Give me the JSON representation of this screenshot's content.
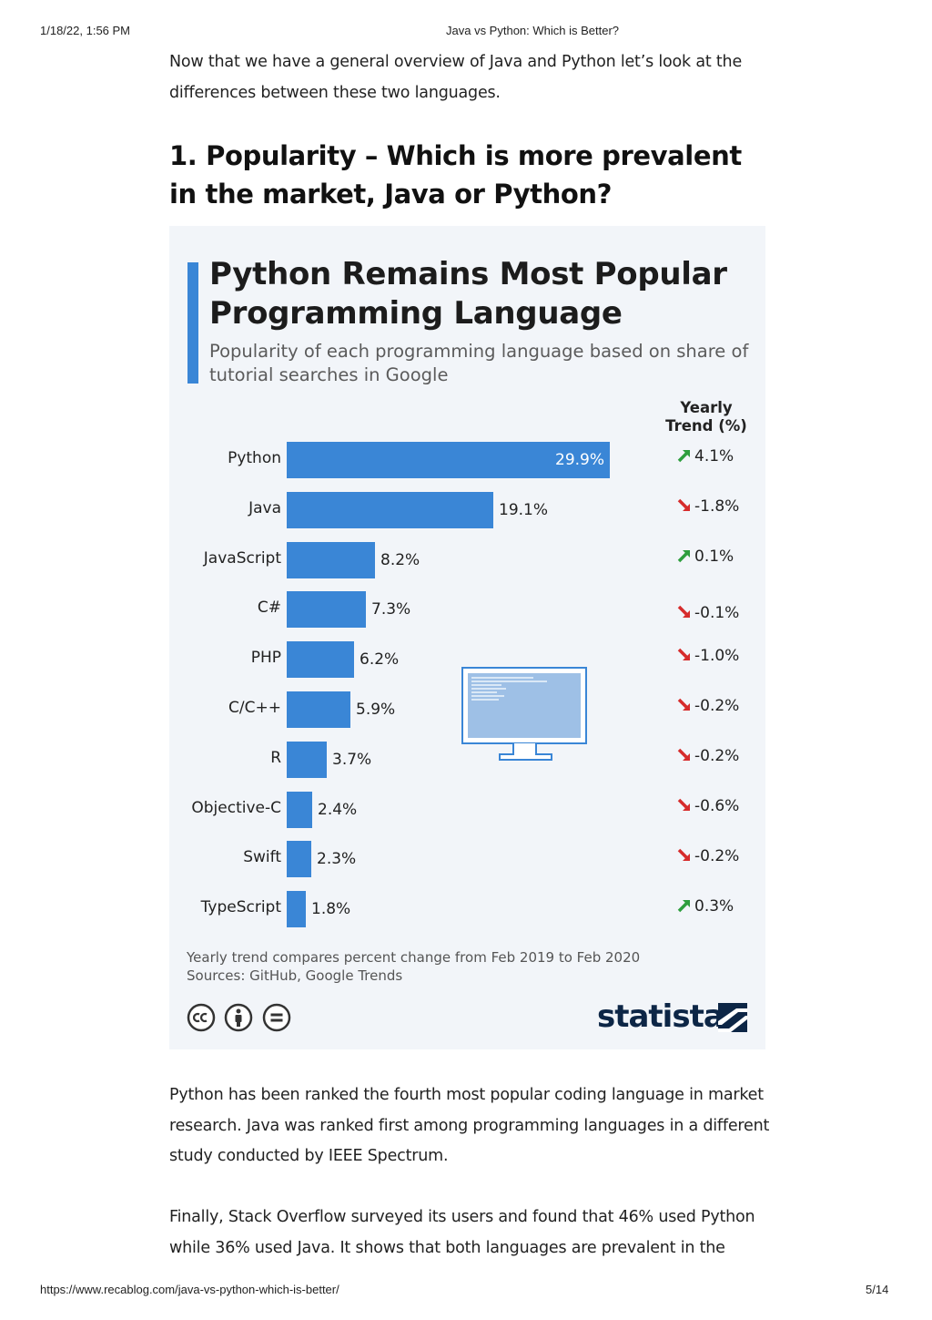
{
  "print": {
    "date": "1/18/22, 1:56 PM",
    "title": "Java vs Python: Which is Better?",
    "url": "https://www.recablog.com/java-vs-python-which-is-better/",
    "page": "5/14"
  },
  "article": {
    "intro": "Now that we have a general overview of Java and Python let’s look at the differences between these two languages.",
    "heading": "1. Popularity – Which is more prevalent in the market, Java or Python?",
    "para1": "Python has been ranked the fourth most popular coding language in market research. Java was ranked first among programming languages in a different study conducted by IEEE Spectrum.",
    "para2": "Finally, Stack Overflow surveyed its users and found that 46% used Python while 36% used Java. It shows that both languages are prevalent in the"
  },
  "infographic": {
    "title": "Python Remains Most Popular Programming Language",
    "subtitle": "Popularity of each programming language based on share of tutorial searches in Google",
    "trend_header": "Yearly Trend (%)",
    "note_line1": "Yearly trend compares percent change from Feb 2019 to Feb 2020",
    "note_line2": "Sources: GitHub, Google Trends",
    "brand": "statista",
    "accent_color": "#3a86d6",
    "up_color": "#2e9e3e",
    "down_color": "#d62c2c"
  },
  "chart_data": {
    "type": "bar",
    "orientation": "horizontal",
    "title": "Python Remains Most Popular Programming Language",
    "subtitle": "Popularity of each programming language based on share of tutorial searches in Google",
    "categories": [
      "Python",
      "Java",
      "JavaScript",
      "C#",
      "PHP",
      "C/C++",
      "R",
      "Objective-C",
      "Swift",
      "TypeScript"
    ],
    "values": [
      29.9,
      19.1,
      8.2,
      7.3,
      6.2,
      5.9,
      3.7,
      2.4,
      2.3,
      1.8
    ],
    "value_labels": [
      "29.9%",
      "19.1%",
      "8.2%",
      "7.3%",
      "6.2%",
      "5.9%",
      "3.7%",
      "2.4%",
      "2.3%",
      "1.8%"
    ],
    "trend_label": "Yearly Trend (%)",
    "trend": [
      4.1,
      -1.8,
      0.1,
      -0.1,
      -1.0,
      -0.2,
      -0.2,
      -0.6,
      -0.2,
      0.3
    ],
    "trend_labels": [
      "4.1%",
      "-1.8%",
      "0.1%",
      "-0.1%",
      "-1.0%",
      "-0.2%",
      "-0.2%",
      "-0.6%",
      "-0.2%",
      "0.3%"
    ],
    "xlim": [
      0,
      30
    ],
    "grid": false,
    "legend": "none"
  }
}
